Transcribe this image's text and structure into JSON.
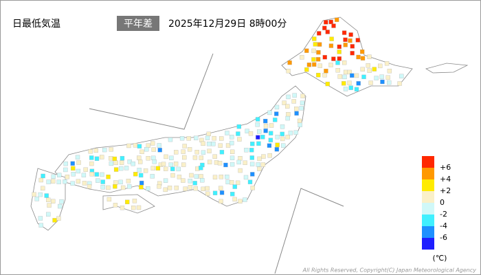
{
  "header": {
    "title": "日最低気温",
    "badge": "平年差",
    "datetime": "2025年12月29日 8時00分"
  },
  "legend": {
    "colors": [
      "#ff2800",
      "#ff9900",
      "#ffeb00",
      "#faf0c8",
      "#d0f8f8",
      "#40f0ff",
      "#1e90ff",
      "#1e1eff"
    ],
    "labels": [
      "+6",
      "+4",
      "+2",
      "0",
      "-2",
      "-4",
      "-6"
    ],
    "unit": "(℃)"
  },
  "footer": {
    "copyright": "All Rights Reserved, Copyright(C) Japan Meteorological Agency"
  }
}
